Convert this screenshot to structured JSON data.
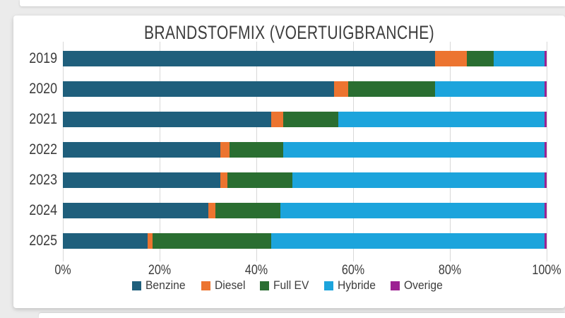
{
  "chart_data": {
    "type": "bar",
    "stacked": true,
    "orientation": "horizontal",
    "title": "BRANDSTOFMIX (VOERTUIGBRANCHE)",
    "categories": [
      "2019",
      "2020",
      "2021",
      "2022",
      "2023",
      "2024",
      "2025"
    ],
    "series": [
      {
        "name": "Benzine",
        "color": "#1f5f7c",
        "values": [
          77,
          56,
          43,
          32.5,
          32.5,
          30,
          17.5
        ]
      },
      {
        "name": "Diesel",
        "color": "#ec7430",
        "values": [
          6.5,
          3,
          2.5,
          2,
          1.5,
          1.5,
          1
        ]
      },
      {
        "name": "Full EV",
        "color": "#2a6e31",
        "values": [
          5.5,
          18,
          11.5,
          11,
          13.5,
          13.5,
          24.5
        ]
      },
      {
        "name": "Hybride",
        "color": "#1ca4dc",
        "values": [
          10.5,
          22.5,
          42.5,
          54,
          52,
          54.5,
          56.5
        ]
      },
      {
        "name": "Overige",
        "color": "#9c2192",
        "values": [
          0.5,
          0.5,
          0.5,
          0.5,
          0.5,
          0.5,
          0.5
        ]
      }
    ],
    "x_ticks": [
      "0%",
      "20%",
      "40%",
      "60%",
      "80%",
      "100%"
    ],
    "xlim": [
      0,
      100
    ],
    "grid": true,
    "legend_position": "bottom",
    "gridline_color": "#d8d8d8",
    "text_color": "#3c3c3c",
    "background_color": "#ffffff"
  }
}
